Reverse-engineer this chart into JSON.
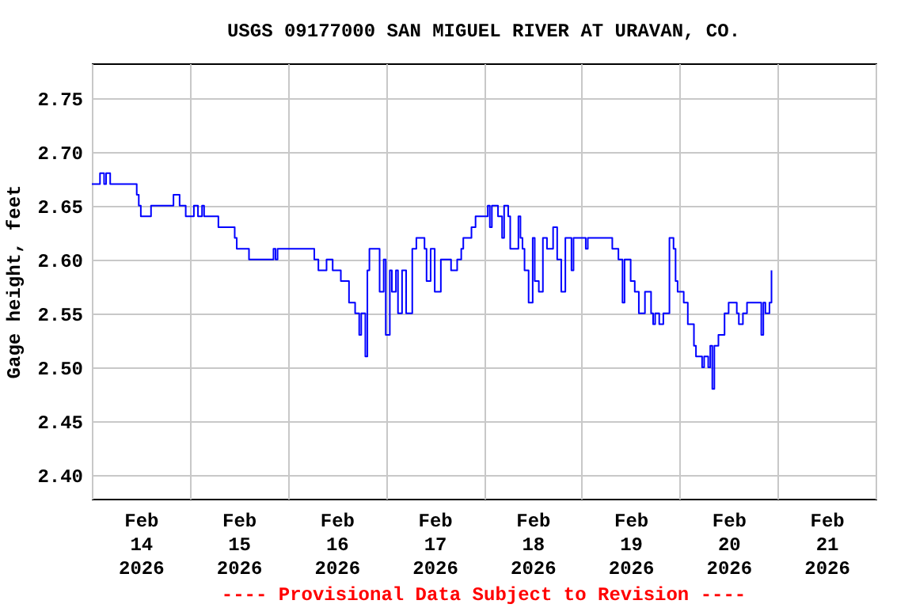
{
  "chart_data": {
    "type": "step",
    "title": "USGS 09177000 SAN MIGUEL RIVER AT URAVAN, CO.",
    "ylabel": "Gage height, feet",
    "annotations": [
      "---- Provisional Data Subject to Revision ----"
    ],
    "xlim": [
      "2026-02-14T00:00",
      "2026-02-22T00:00"
    ],
    "xticks": [
      {
        "value": "2026-02-14T00:00",
        "label": null
      },
      {
        "value": "2026-02-14T12:00",
        "label": "Feb\n14\n2026"
      },
      {
        "value": "2026-02-15T00:00",
        "label": null
      },
      {
        "value": "2026-02-15T12:00",
        "label": "Feb\n15\n2026"
      },
      {
        "value": "2026-02-16T00:00",
        "label": null
      },
      {
        "value": "2026-02-16T12:00",
        "label": "Feb\n16\n2026"
      },
      {
        "value": "2026-02-17T00:00",
        "label": null
      },
      {
        "value": "2026-02-17T12:00",
        "label": "Feb\n17\n2026"
      },
      {
        "value": "2026-02-18T00:00",
        "label": null
      },
      {
        "value": "2026-02-18T12:00",
        "label": "Feb\n18\n2026"
      },
      {
        "value": "2026-02-19T00:00",
        "label": null
      },
      {
        "value": "2026-02-19T12:00",
        "label": "Feb\n19\n2026"
      },
      {
        "value": "2026-02-20T00:00",
        "label": null
      },
      {
        "value": "2026-02-20T12:00",
        "label": "Feb\n20\n2026"
      },
      {
        "value": "2026-02-21T00:00",
        "label": null
      },
      {
        "value": "2026-02-21T12:00",
        "label": "Feb\n21\n2026"
      },
      {
        "value": "2026-02-22T00:00",
        "label": null
      }
    ],
    "ylim": [
      2.378,
      2.782
    ],
    "yticks": [
      {
        "value": 2.4,
        "label": "2.40"
      },
      {
        "value": 2.45,
        "label": "2.45"
      },
      {
        "value": 2.5,
        "label": "2.50"
      },
      {
        "value": 2.55,
        "label": "2.55"
      },
      {
        "value": 2.6,
        "label": "2.60"
      },
      {
        "value": 2.65,
        "label": "2.65"
      },
      {
        "value": 2.7,
        "label": "2.70"
      },
      {
        "value": 2.75,
        "label": "2.75"
      }
    ],
    "grid": true,
    "x": [
      "2026-02-14T00:00",
      "2026-02-14T02:00",
      "2026-02-14T03:00",
      "2026-02-14T03:30",
      "2026-02-14T04:30",
      "2026-02-14T10:00",
      "2026-02-14T11:00",
      "2026-02-14T11:30",
      "2026-02-14T12:00",
      "2026-02-14T13:00",
      "2026-02-14T14:30",
      "2026-02-14T19:30",
      "2026-02-14T20:00",
      "2026-02-14T21:00",
      "2026-02-14T21:30",
      "2026-02-14T23:00",
      "2026-02-15T00:30",
      "2026-02-15T01:00",
      "2026-02-15T02:00",
      "2026-02-15T03:00",
      "2026-02-15T03:30",
      "2026-02-15T06:30",
      "2026-02-15T07:00",
      "2026-02-15T10:30",
      "2026-02-15T11:00",
      "2026-02-15T11:30",
      "2026-02-15T14:00",
      "2026-02-15T14:30",
      "2026-02-15T20:00",
      "2026-02-15T20:30",
      "2026-02-15T21:00",
      "2026-02-15T21:30",
      "2026-02-15T22:30",
      "2026-02-16T06:00",
      "2026-02-16T06:30",
      "2026-02-16T07:30",
      "2026-02-16T09:30",
      "2026-02-16T10:30",
      "2026-02-16T11:00",
      "2026-02-16T13:00",
      "2026-02-16T15:00",
      "2026-02-16T16:30",
      "2026-02-16T17:30",
      "2026-02-16T18:00",
      "2026-02-16T19:00",
      "2026-02-16T19:30",
      "2026-02-16T20:00",
      "2026-02-16T21:30",
      "2026-02-16T22:30",
      "2026-02-16T23:30",
      "2026-02-17T00:00",
      "2026-02-17T01:00",
      "2026-02-17T01:30",
      "2026-02-17T02:30",
      "2026-02-17T03:00",
      "2026-02-17T04:00",
      "2026-02-17T05:00",
      "2026-02-17T06:30",
      "2026-02-17T07:30",
      "2026-02-17T08:30",
      "2026-02-17T09:30",
      "2026-02-17T10:00",
      "2026-02-17T11:00",
      "2026-02-17T12:00",
      "2026-02-17T13:30",
      "2026-02-17T15:00",
      "2026-02-17T16:00",
      "2026-02-17T17:30",
      "2026-02-17T18:30",
      "2026-02-17T19:00",
      "2026-02-17T20:30",
      "2026-02-17T21:00",
      "2026-02-17T22:00",
      "2026-02-17T23:30",
      "2026-02-18T01:00",
      "2026-02-18T01:30",
      "2026-02-18T02:00",
      "2026-02-18T03:30",
      "2026-02-18T04:30",
      "2026-02-18T05:00",
      "2026-02-18T06:00",
      "2026-02-18T06:30",
      "2026-02-18T08:30",
      "2026-02-18T09:00",
      "2026-02-18T09:30",
      "2026-02-18T10:00",
      "2026-02-18T11:00",
      "2026-02-18T12:00",
      "2026-02-18T12:30",
      "2026-02-18T13:30",
      "2026-02-18T14:30",
      "2026-02-18T15:30",
      "2026-02-18T17:00",
      "2026-02-18T18:00",
      "2026-02-18T19:00",
      "2026-02-18T20:00",
      "2026-02-18T21:30",
      "2026-02-18T22:00",
      "2026-02-19T01:00",
      "2026-02-19T01:30",
      "2026-02-19T07:00",
      "2026-02-19T07:30",
      "2026-02-19T09:00",
      "2026-02-19T10:00",
      "2026-02-19T10:30",
      "2026-02-19T12:00",
      "2026-02-19T13:00",
      "2026-02-19T14:00",
      "2026-02-19T15:30",
      "2026-02-19T17:00",
      "2026-02-19T17:30",
      "2026-02-19T18:00",
      "2026-02-19T19:00",
      "2026-02-19T20:00",
      "2026-02-19T21:30",
      "2026-02-19T22:30",
      "2026-02-19T23:00",
      "2026-02-19T23:30",
      "2026-02-20T01:00",
      "2026-02-20T02:00",
      "2026-02-20T03:30",
      "2026-02-20T04:00",
      "2026-02-20T05:30",
      "2026-02-20T06:00",
      "2026-02-20T07:00",
      "2026-02-20T07:30",
      "2026-02-20T08:00",
      "2026-02-20T08:30",
      "2026-02-20T09:30",
      "2026-02-20T11:00",
      "2026-02-20T12:00",
      "2026-02-20T13:30",
      "2026-02-20T14:00",
      "2026-02-20T14:30",
      "2026-02-20T15:30",
      "2026-02-20T16:30",
      "2026-02-20T19:30",
      "2026-02-20T20:00",
      "2026-02-20T20:30",
      "2026-02-20T21:00",
      "2026-02-20T22:00",
      "2026-02-20T22:30"
    ],
    "series": [
      {
        "color": "#0000ff",
        "values": [
          2.67,
          2.68,
          2.67,
          2.68,
          2.67,
          2.67,
          2.66,
          2.65,
          2.64,
          2.64,
          2.65,
          2.65,
          2.66,
          2.66,
          2.65,
          2.64,
          2.64,
          2.65,
          2.64,
          2.65,
          2.64,
          2.64,
          2.63,
          2.63,
          2.62,
          2.61,
          2.61,
          2.6,
          2.6,
          2.61,
          2.6,
          2.61,
          2.61,
          2.61,
          2.6,
          2.59,
          2.6,
          2.6,
          2.59,
          2.58,
          2.56,
          2.55,
          2.53,
          2.55,
          2.51,
          2.59,
          2.61,
          2.61,
          2.57,
          2.6,
          2.53,
          2.59,
          2.57,
          2.59,
          2.55,
          2.59,
          2.55,
          2.61,
          2.62,
          2.62,
          2.61,
          2.58,
          2.61,
          2.57,
          2.6,
          2.6,
          2.59,
          2.6,
          2.61,
          2.62,
          2.62,
          2.63,
          2.64,
          2.64,
          2.65,
          2.63,
          2.65,
          2.64,
          2.62,
          2.65,
          2.64,
          2.61,
          2.64,
          2.62,
          2.61,
          2.59,
          2.56,
          2.62,
          2.58,
          2.57,
          2.62,
          2.61,
          2.63,
          2.6,
          2.57,
          2.62,
          2.59,
          2.62,
          2.61,
          2.62,
          2.62,
          2.61,
          2.6,
          2.56,
          2.6,
          2.58,
          2.57,
          2.55,
          2.57,
          2.55,
          2.54,
          2.55,
          2.54,
          2.55,
          2.62,
          2.61,
          2.58,
          2.57,
          2.56,
          2.54,
          2.52,
          2.51,
          2.5,
          2.51,
          2.5,
          2.52,
          2.48,
          2.52,
          2.53,
          2.55,
          2.56,
          2.56,
          2.55,
          2.54,
          2.55,
          2.56,
          2.56,
          2.53,
          2.56,
          2.55,
          2.56,
          2.59
        ]
      }
    ]
  }
}
